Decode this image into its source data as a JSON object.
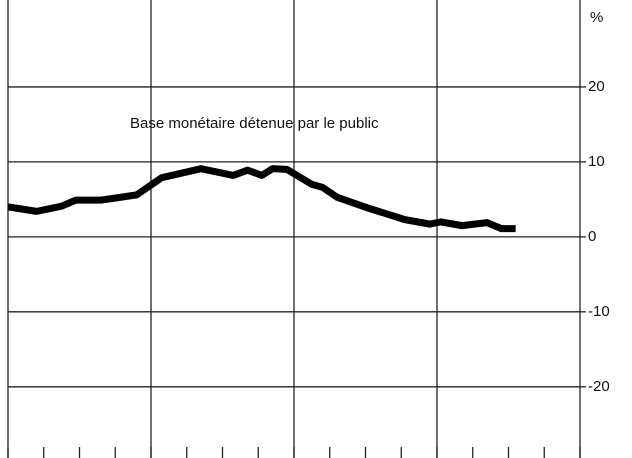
{
  "chart_data": {
    "type": "line",
    "y_label": "%",
    "x": [
      0,
      0.8,
      1.5,
      1.9,
      2.6,
      3.6,
      4.3,
      5.4,
      6.3,
      6.7,
      7.1,
      7.4,
      7.8,
      8.5,
      8.8,
      9.2,
      10.1,
      11.1,
      11.8,
      12.1,
      12.7,
      13.4,
      13.8,
      14.2
    ],
    "series": [
      {
        "name": "Base monétaire détenue par le public",
        "color": "#000000",
        "values": [
          4.0,
          3.4,
          4.1,
          4.9,
          4.9,
          5.6,
          7.9,
          9.1,
          8.2,
          8.9,
          8.2,
          9.1,
          9.0,
          7.0,
          6.6,
          5.3,
          3.8,
          2.3,
          1.7,
          2.0,
          1.5,
          1.9,
          1.1,
          1.1
        ]
      }
    ],
    "xlim": [
      0,
      16
    ],
    "xticks": [
      0,
      1,
      2,
      3,
      4,
      5,
      6,
      7,
      8,
      9,
      10,
      11,
      12,
      13,
      14,
      15,
      16
    ],
    "ylim": [
      -29.5,
      31.6
    ],
    "yticks": [
      20,
      10,
      0,
      -10,
      -20
    ],
    "grid": true
  }
}
